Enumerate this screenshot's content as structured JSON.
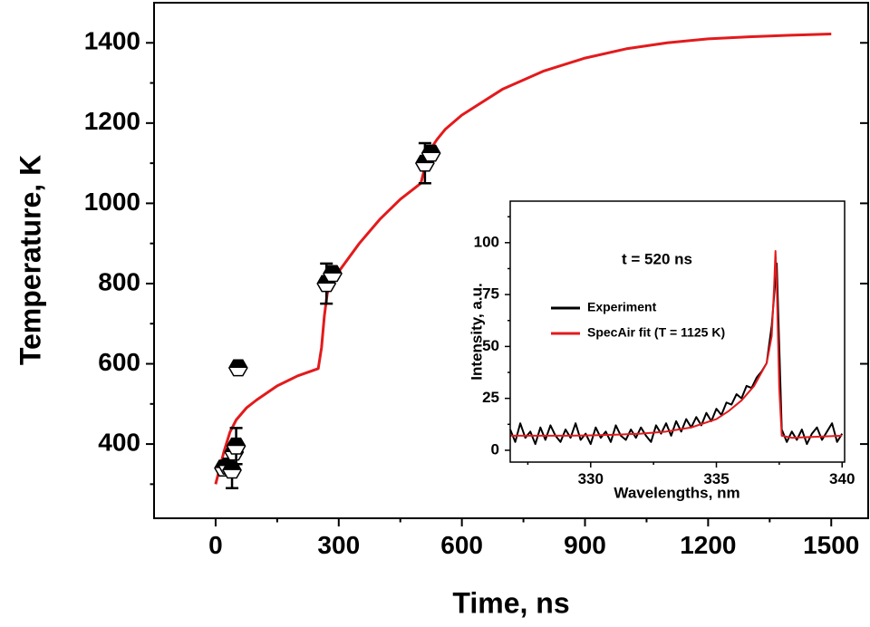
{
  "chart_data": [
    {
      "type": "line",
      "xlabel": "Time, ns",
      "ylabel": "Temperature, K",
      "xlim": [
        -150,
        1590
      ],
      "ylim": [
        215,
        1500
      ],
      "xticks": [
        0,
        300,
        600,
        900,
        1200,
        1500
      ],
      "yticks": [
        400,
        600,
        800,
        1000,
        1200,
        1400
      ],
      "series": [
        {
          "color": "#e31a1c",
          "x": [
            0,
            10,
            20,
            35,
            50,
            75,
            100,
            150,
            200,
            250,
            258,
            265,
            272,
            280,
            290,
            300,
            350,
            400,
            450,
            500,
            510,
            520,
            540,
            560,
            600,
            700,
            800,
            900,
            1000,
            1100,
            1200,
            1300,
            1400,
            1500
          ],
          "values": [
            300,
            340,
            380,
            430,
            460,
            490,
            510,
            545,
            570,
            588,
            640,
            720,
            775,
            800,
            815,
            830,
            900,
            960,
            1010,
            1050,
            1090,
            1130,
            1160,
            1185,
            1220,
            1285,
            1330,
            1362,
            1385,
            1400,
            1410,
            1415,
            1419,
            1422
          ]
        }
      ],
      "points": {
        "color": "#000000",
        "x": [
          20,
          30,
          40,
          45,
          50,
          55,
          270,
          285,
          510,
          525
        ],
        "values": [
          340,
          345,
          335,
          380,
          395,
          590,
          800,
          825,
          1100,
          1125
        ],
        "errors": [
          null,
          null,
          45,
          null,
          45,
          null,
          50,
          null,
          50,
          null
        ]
      }
    },
    {
      "type": "line",
      "annotation": "t = 520 ns",
      "xlabel": "Wavelengths, nm",
      "ylabel": "Intensity, a.u.",
      "xlim": [
        326.8,
        340.1
      ],
      "ylim": [
        -5.7,
        120
      ],
      "xticks": [
        330,
        335,
        340
      ],
      "yticks": [
        0,
        25,
        50,
        75,
        100
      ],
      "series": [
        {
          "name": "Experiment",
          "color": "#000000",
          "x": [
            326.8,
            327.0,
            327.2,
            327.4,
            327.6,
            327.8,
            328.0,
            328.2,
            328.4,
            328.6,
            328.8,
            329.0,
            329.2,
            329.4,
            329.6,
            329.8,
            330.0,
            330.2,
            330.4,
            330.6,
            330.8,
            331.0,
            331.2,
            331.4,
            331.6,
            331.8,
            332.0,
            332.2,
            332.4,
            332.6,
            332.8,
            333.0,
            333.2,
            333.4,
            333.6,
            333.8,
            334.0,
            334.2,
            334.4,
            334.6,
            334.8,
            335.0,
            335.2,
            335.4,
            335.6,
            335.8,
            336.0,
            336.2,
            336.4,
            336.6,
            336.8,
            337.0,
            337.2,
            337.4,
            337.6,
            337.8,
            338.0,
            338.2,
            338.4,
            338.6,
            338.8,
            339.0,
            339.2,
            339.4,
            339.6,
            339.8,
            340.0
          ],
          "values": [
            10,
            4,
            13,
            6,
            9,
            3,
            11,
            5,
            12,
            7,
            4,
            10,
            6,
            13,
            5,
            8,
            3,
            11,
            6,
            9,
            4,
            12,
            7,
            5,
            10,
            6,
            11,
            7,
            4,
            12,
            8,
            13,
            7,
            14,
            9,
            15,
            11,
            16,
            12,
            18,
            14,
            20,
            17,
            23,
            22,
            27,
            25,
            31,
            30,
            35,
            38,
            42,
            60,
            90,
            10,
            4,
            9,
            5,
            10,
            3,
            8,
            11,
            5,
            9,
            13,
            4,
            8
          ]
        },
        {
          "name": "SpecAir fit (T = 1125 K)",
          "color": "#e31a1c",
          "x": [
            326.8,
            328,
            329,
            330,
            331,
            332,
            333,
            334,
            335,
            335.5,
            336,
            336.5,
            337,
            337.2,
            337.3,
            337.35,
            337.4,
            337.5,
            337.6,
            338,
            339,
            340
          ],
          "values": [
            7,
            7,
            7,
            7.2,
            7.5,
            8,
            9,
            11,
            15,
            19,
            24,
            31,
            42,
            55,
            80,
            96,
            80,
            30,
            7,
            6,
            6.5,
            7
          ]
        }
      ]
    }
  ]
}
